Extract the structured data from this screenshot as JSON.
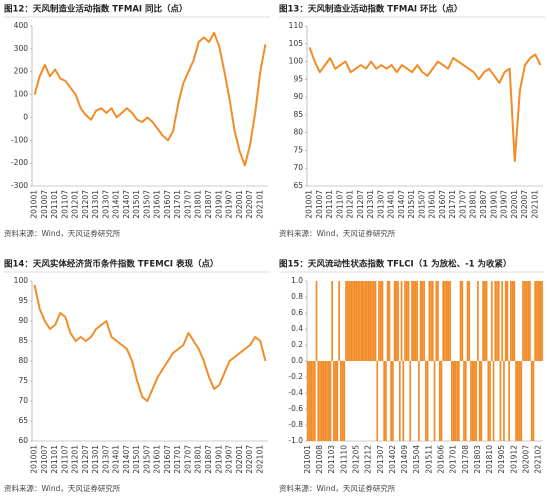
{
  "chart_data": [
    {
      "type": "line",
      "title": "图12：天风制造业活动指数 TFMAI 同比（点）",
      "source": "资料来源：Wind，天风证券研究所",
      "color": "#f28c28",
      "grid": false,
      "categories": [
        "201001",
        null,
        "201007",
        null,
        "201101",
        null,
        "201107",
        null,
        "201201",
        null,
        "201207",
        null,
        "201301",
        null,
        "201307",
        null,
        "201401",
        null,
        "201407",
        null,
        "201501",
        null,
        "201507",
        null,
        "201601",
        null,
        "201607",
        null,
        "201701",
        null,
        "201707",
        null,
        "201801",
        null,
        "201807",
        null,
        "201901",
        null,
        "201907",
        null,
        "202001",
        null,
        "202007",
        null,
        "202101",
        null
      ],
      "values": [
        100,
        180,
        230,
        180,
        210,
        170,
        160,
        130,
        100,
        40,
        10,
        -10,
        30,
        40,
        20,
        40,
        0,
        20,
        40,
        20,
        -10,
        -20,
        0,
        -20,
        -50,
        -80,
        -100,
        -60,
        60,
        150,
        200,
        250,
        330,
        350,
        330,
        370,
        310,
        200,
        80,
        -60,
        -150,
        -210,
        -120,
        20,
        200,
        320
      ],
      "ylim": [
        -300,
        400
      ],
      "yticks": [
        -300,
        -200,
        -100,
        0,
        100,
        200,
        300,
        400
      ]
    },
    {
      "type": "line",
      "title": "图13：天风制造业活动指数 TFMAI 环比（点）",
      "source": "资料来源：Wind，天风证券研究所",
      "color": "#f28c28",
      "grid": false,
      "categories": [
        "201001",
        null,
        "201007",
        null,
        "201101",
        null,
        "201107",
        null,
        "201201",
        null,
        "201207",
        null,
        "201301",
        null,
        "201307",
        null,
        "201401",
        null,
        "201407",
        null,
        "201501",
        null,
        "201507",
        null,
        "201601",
        null,
        "201607",
        null,
        "201701",
        null,
        "201707",
        null,
        "201801",
        null,
        "201807",
        null,
        "201901",
        null,
        "201907",
        null,
        "202001",
        null,
        "202007",
        null,
        "202101",
        null
      ],
      "values": [
        104,
        100,
        97,
        99,
        101,
        98,
        99,
        100,
        97,
        98,
        99,
        98,
        100,
        98,
        99,
        98,
        99,
        97,
        99,
        98,
        97,
        99,
        97,
        96,
        98,
        100,
        99,
        98,
        101,
        100,
        99,
        98,
        97,
        95,
        97,
        98,
        96,
        94,
        97,
        98,
        72,
        92,
        99,
        101,
        102,
        99
      ],
      "ylim": [
        65,
        110
      ],
      "yticks": [
        65,
        70,
        75,
        80,
        85,
        90,
        95,
        100,
        105,
        110
      ]
    },
    {
      "type": "line",
      "title": "图14：天风实体经济货币条件指数 TFEMCI 表现（点）",
      "source": "资料来源：Wind，天风证券研究所",
      "color": "#f28c28",
      "grid": false,
      "categories": [
        "201001",
        null,
        "201007",
        null,
        "201101",
        null,
        "201107",
        null,
        "201201",
        null,
        "201207",
        null,
        "201301",
        null,
        "201307",
        null,
        "201401",
        null,
        "201407",
        null,
        "201501",
        null,
        "201507",
        null,
        "201601",
        null,
        "201607",
        null,
        "201701",
        null,
        "201707",
        null,
        "201801",
        null,
        "201807",
        null,
        "201901",
        null,
        "201907",
        null,
        "202001",
        null,
        "202007",
        null,
        "202101",
        null
      ],
      "values": [
        99,
        93,
        90,
        88,
        89,
        92,
        91,
        87,
        85,
        86,
        85,
        86,
        88,
        89,
        90,
        86,
        85,
        84,
        83,
        80,
        75,
        71,
        70,
        73,
        76,
        78,
        80,
        82,
        83,
        84,
        87,
        85,
        83,
        80,
        76,
        73,
        74,
        77,
        80,
        81,
        82,
        83,
        84,
        86,
        85,
        80
      ],
      "ylim": [
        60,
        100
      ],
      "yticks": [
        60,
        65,
        70,
        75,
        80,
        85,
        90,
        95,
        100
      ]
    },
    {
      "type": "bar",
      "title": "图15：天风流动性状态指数 TFLCI（1 为放松、-1 为收紧）",
      "source": "资料来源：Wind，天风证券研究所",
      "color": "#f28c28",
      "grid": false,
      "categories": [
        "201001",
        null,
        null,
        null,
        null,
        null,
        null,
        "201008",
        null,
        null,
        null,
        null,
        null,
        null,
        "201103",
        null,
        null,
        null,
        null,
        null,
        null,
        "201110",
        null,
        null,
        null,
        null,
        null,
        null,
        "201205",
        null,
        null,
        null,
        null,
        null,
        null,
        "201212",
        null,
        null,
        null,
        null,
        null,
        null,
        "201307",
        null,
        null,
        null,
        null,
        null,
        null,
        "201402",
        null,
        null,
        null,
        null,
        null,
        null,
        "201409",
        null,
        null,
        null,
        null,
        null,
        null,
        "201504",
        null,
        null,
        null,
        null,
        null,
        null,
        "201511",
        null,
        null,
        null,
        null,
        null,
        null,
        "201606",
        null,
        null,
        null,
        null,
        null,
        null,
        "201701",
        null,
        null,
        null,
        null,
        null,
        null,
        "201708",
        null,
        null,
        null,
        null,
        null,
        null,
        "201803",
        null,
        null,
        null,
        null,
        null,
        null,
        "201810",
        null,
        null,
        null,
        null,
        null,
        null,
        "201905",
        null,
        null,
        null,
        null,
        null,
        null,
        "201912",
        null,
        null,
        null,
        null,
        null,
        null,
        "202007",
        null,
        null,
        null,
        null,
        null,
        null,
        "202102",
        null,
        null
      ],
      "values": [
        -1,
        -1,
        -1,
        -1,
        -1,
        1,
        -1,
        -1,
        -1,
        -1,
        -1,
        -1,
        -1,
        -1,
        1,
        -1,
        -1,
        -1,
        1,
        -1,
        -1,
        -1,
        1,
        1,
        1,
        1,
        1,
        1,
        1,
        1,
        1,
        1,
        1,
        1,
        1,
        1,
        1,
        1,
        1,
        1,
        -1,
        1,
        1,
        1,
        -1,
        -1,
        1,
        1,
        -1,
        -1,
        1,
        1,
        1,
        -1,
        1,
        -1,
        1,
        1,
        1,
        -1,
        1,
        1,
        1,
        1,
        -1,
        1,
        1,
        1,
        -1,
        -1,
        1,
        1,
        1,
        -1,
        1,
        1,
        -1,
        -1,
        1,
        1,
        1,
        1,
        1,
        -1,
        -1,
        -1,
        -1,
        -1,
        1,
        1,
        -1,
        -1,
        1,
        1,
        -1,
        -1,
        -1,
        -1,
        1,
        -1,
        -1,
        1,
        1,
        1,
        -1,
        -1,
        1,
        -1,
        1,
        1,
        1,
        -1,
        1,
        -1,
        1,
        1,
        -1,
        1,
        1,
        1,
        -1,
        -1,
        -1,
        -1,
        1,
        1,
        1,
        1,
        1,
        -1,
        -1,
        1,
        1,
        1,
        1,
        1
      ],
      "ylim": [
        -1,
        1
      ],
      "yticks": [
        {
          "value": -1,
          "label": "-1.0"
        },
        -0.8,
        -0.6,
        -0.4,
        -0.2,
        {
          "value": 0,
          "label": "0.0"
        },
        0.2,
        0.4,
        0.6,
        0.8,
        {
          "value": 1,
          "label": "1.0"
        }
      ]
    }
  ]
}
